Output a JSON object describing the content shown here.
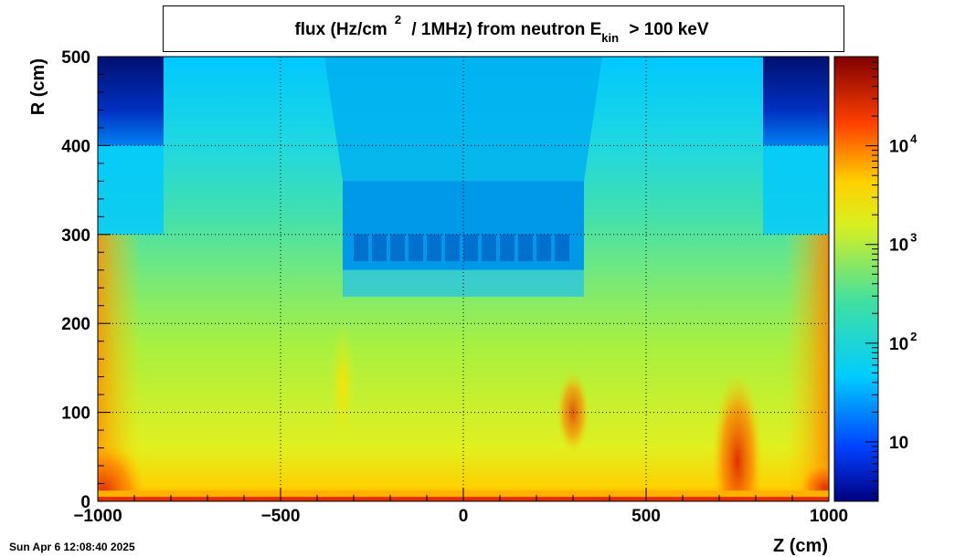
{
  "chart_data": {
    "type": "heatmap",
    "title_parts": {
      "a": "flux (Hz/cm",
      "sup": "2",
      "b": " / 1MHz) from   neutron  E",
      "sub": "kin",
      "c": " > 100 keV"
    },
    "xlabel": "Z (cm)",
    "ylabel": "R (cm)",
    "xlim": [
      -1000,
      1000
    ],
    "ylim": [
      0,
      500
    ],
    "x_ticks": [
      -1000,
      -500,
      0,
      500,
      1000
    ],
    "x_tick_labels": [
      "−1000",
      "−500",
      "0",
      "500",
      "1000"
    ],
    "y_ticks": [
      0,
      100,
      200,
      300,
      400,
      500
    ],
    "y_tick_labels": [
      "0",
      "100",
      "200",
      "300",
      "400",
      "500"
    ],
    "grid": true,
    "colorbar": {
      "scale": "log",
      "range": [
        2.5,
        80000
      ],
      "ticks": [
        10,
        100,
        1000,
        10000
      ],
      "tick_labels": [
        {
          "base": "10",
          "exp": ""
        },
        {
          "base": "10",
          "exp": "2"
        },
        {
          "base": "10",
          "exp": "3"
        },
        {
          "base": "10",
          "exp": "4"
        }
      ]
    },
    "regions": [
      {
        "name": "outer-shell-left",
        "z": [
          -1000,
          -820
        ],
        "r": [
          400,
          500
        ],
        "value": 15
      },
      {
        "name": "outer-shell-right",
        "z": [
          820,
          1000
        ],
        "r": [
          400,
          500
        ],
        "value": 15
      },
      {
        "name": "calorimeter-core",
        "z": [
          -330,
          330
        ],
        "r": [
          260,
          360
        ],
        "value": 60
      },
      {
        "name": "beamline",
        "z": [
          -1000,
          1000
        ],
        "r": [
          0,
          10
        ],
        "value": 15000
      },
      {
        "name": "forward-left",
        "z": [
          -1000,
          -900
        ],
        "r": [
          0,
          60
        ],
        "value": 20000
      },
      {
        "name": "forward-right",
        "z": [
          720,
          780
        ],
        "r": [
          0,
          100
        ],
        "value": 15000
      },
      {
        "name": "hotspot-right",
        "z": [
          270,
          330
        ],
        "r": [
          60,
          130
        ],
        "value": 5000
      },
      {
        "name": "hotspot-left",
        "z": [
          -350,
          -310
        ],
        "r": [
          90,
          160
        ],
        "value": 2000
      }
    ]
  },
  "timestamp": "Sun Apr  6 12:08:40 2025"
}
